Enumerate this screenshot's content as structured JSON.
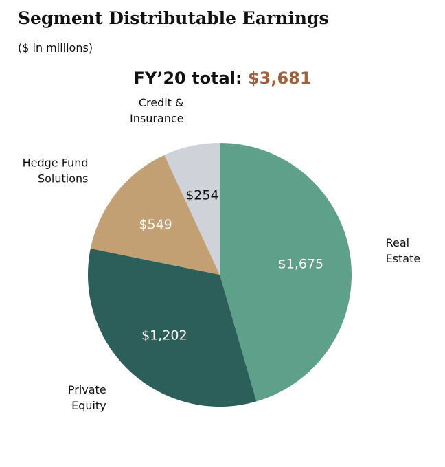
{
  "header": {
    "title": "Segment Distributable Earnings",
    "subtitle": "($ in millions)",
    "total_prefix": "FY’20 total:",
    "total_value": "$3,681"
  },
  "colors": {
    "accent": "#a0603a"
  },
  "chart_data": {
    "type": "pie",
    "title": "Segment Distributable Earnings",
    "subtitle": "($ in millions)",
    "unit": "$ in millions",
    "total": 3681,
    "slices": [
      {
        "name": "Real Estate",
        "label_lines": [
          "Real",
          "Estate"
        ],
        "value": 1675,
        "value_label": "$1,675",
        "color": "#5fa08a",
        "text_color": "#ffffff"
      },
      {
        "name": "Private Equity",
        "label_lines": [
          "Private",
          "Equity"
        ],
        "value": 1202,
        "value_label": "$1,202",
        "color": "#2c5f59",
        "text_color": "#ffffff"
      },
      {
        "name": "Hedge Fund Solutions",
        "label_lines": [
          "Hedge Fund",
          "Solutions"
        ],
        "value": 549,
        "value_label": "$549",
        "color": "#c3a074",
        "text_color": "#ffffff"
      },
      {
        "name": "Credit & Insurance",
        "label_lines": [
          "Credit &",
          "Insurance"
        ],
        "value": 254,
        "value_label": "$254",
        "color": "#cfd2d9",
        "text_color": "#111111"
      }
    ]
  }
}
